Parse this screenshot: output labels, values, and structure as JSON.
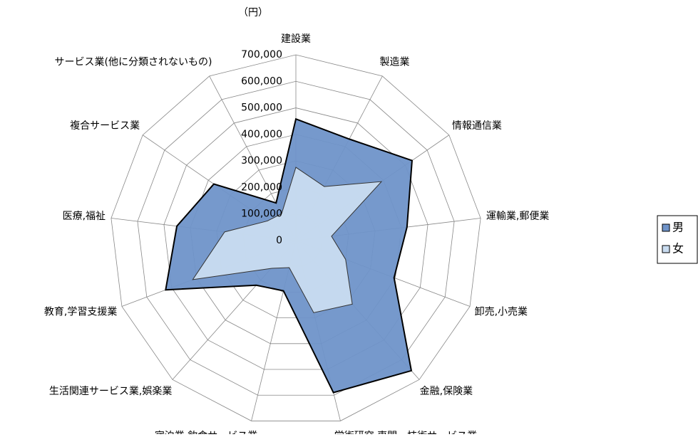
{
  "chart_data": {
    "type": "radar",
    "unit_label": "（円）",
    "categories": [
      "建設業",
      "製造業",
      "情報通信業",
      "運輸業,郵便業",
      "卸売,小売業",
      "金融,保険業",
      "学術研究,専門・技術サービス業",
      "宿泊業,飲食サービス業",
      "生活関連サービス業,娯楽業",
      "教育,学習支援業",
      "医療,福祉",
      "複合サービス業",
      "サービス業(他に分類されないもの)"
    ],
    "series": [
      {
        "name": "男",
        "color": "#6f93c9",
        "values": [
          458000,
          432000,
          531000,
          421000,
          395000,
          655000,
          590000,
          195000,
          225000,
          524000,
          451000,
          375000,
          160000
        ]
      },
      {
        "name": "女",
        "color": "#c9dcf0",
        "values": [
          276000,
          230000,
          391000,
          135000,
          200000,
          320000,
          280000,
          105000,
          140000,
          415000,
          270000,
          130000,
          115000
        ]
      }
    ],
    "ylim": [
      0,
      700000
    ],
    "yticks": [
      0,
      {
        "value": 100000,
        "label": "100,000"
      },
      {
        "value": 200000,
        "label": "200,000"
      },
      {
        "value": 300000,
        "label": "300,000"
      },
      {
        "value": 400000,
        "label": "400,000"
      },
      {
        "value": 500000,
        "label": "500,000"
      },
      {
        "value": 600000,
        "label": "600,000"
      },
      {
        "value": 700000,
        "label": "700,000"
      }
    ],
    "legend": "right"
  }
}
